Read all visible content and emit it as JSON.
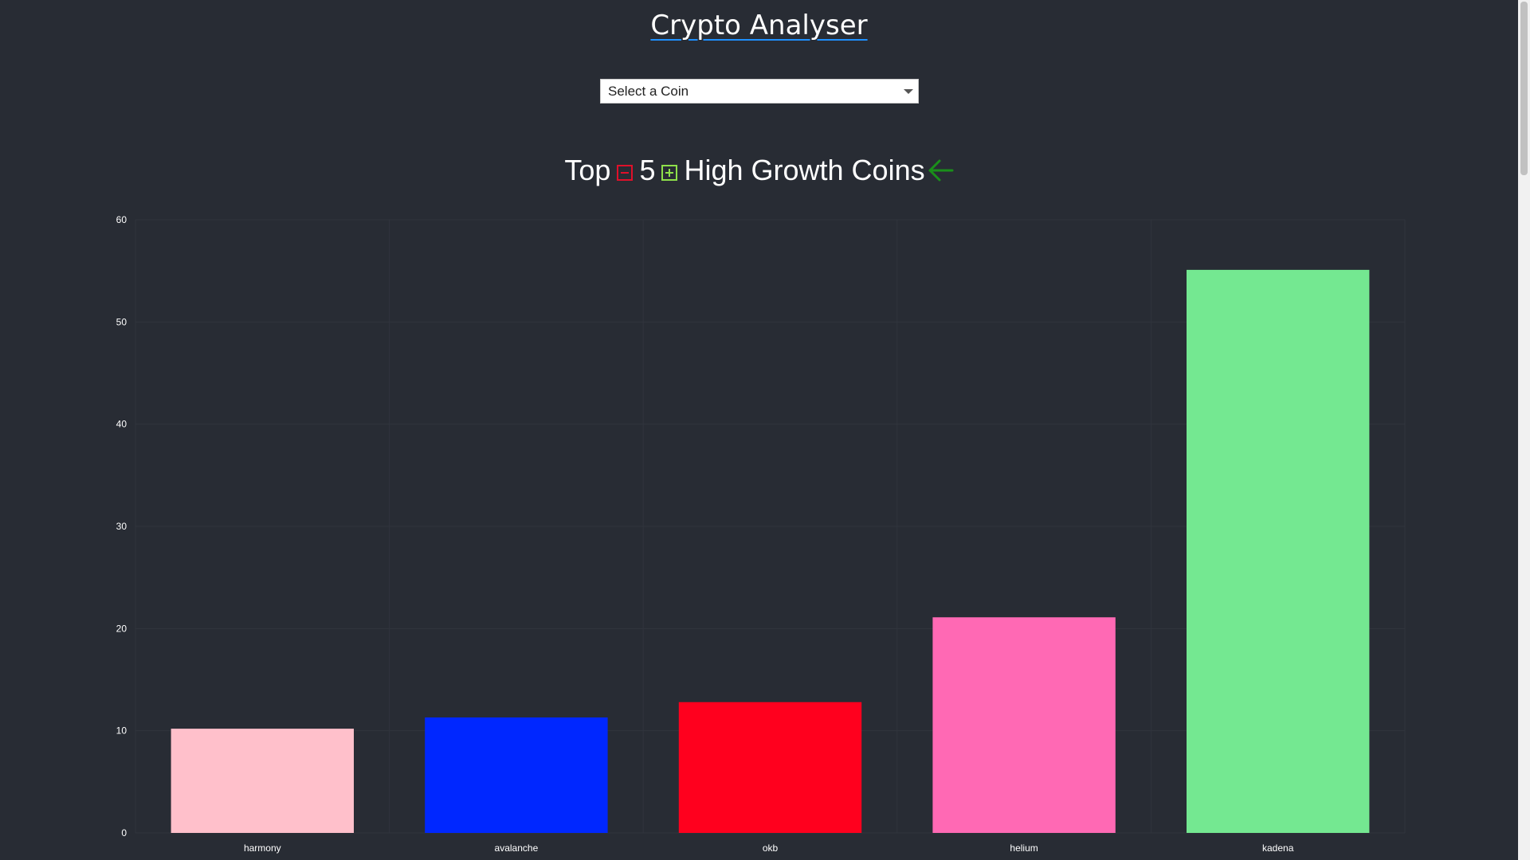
{
  "header": {
    "title": "Crypto Analyser"
  },
  "coin_select": {
    "selected": "Select a Coin"
  },
  "heading": {
    "prefix": "Top",
    "count": "5",
    "suffix": "High Growth Coins"
  },
  "icons": {
    "minus": "minus-square-icon",
    "plus": "plus-square-icon",
    "back": "arrow-left-icon"
  },
  "colors": {
    "background": "#282c34",
    "title_underline": "#1e90ff",
    "minus": "#e0102a",
    "plus": "#8ee04a",
    "back_arrow": "#1a8f1a"
  },
  "chart_data": {
    "type": "bar",
    "categories": [
      "harmony",
      "avalanche",
      "okb",
      "helium",
      "kadena"
    ],
    "values": [
      10.2,
      11.3,
      12.8,
      21.1,
      55.1
    ],
    "colors": [
      "#ffc0cb",
      "#0027ff",
      "#ff001e",
      "#ff69b4",
      "#74e891"
    ],
    "ylim": [
      0,
      60
    ],
    "yticks": [
      0,
      10,
      20,
      30,
      40,
      50,
      60
    ],
    "grid": true,
    "title": "",
    "xlabel": "",
    "ylabel": ""
  }
}
